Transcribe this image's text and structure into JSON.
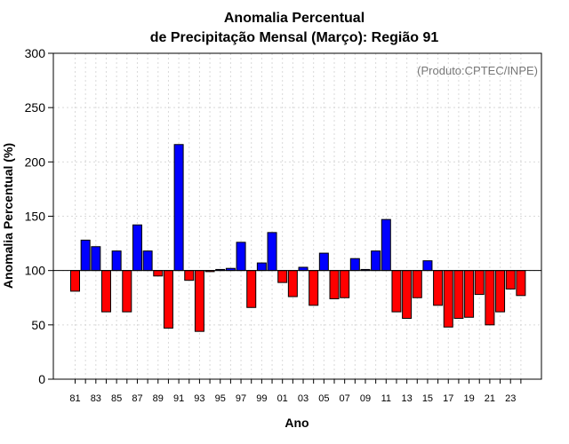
{
  "chart_data": {
    "type": "bar",
    "title_line1": "Anomalia Percentual",
    "title_line2": "de Precipitação Mensal (Março): Região 91",
    "xlabel": "Ano",
    "ylabel": "Anomalia Percentual (%)",
    "annotation": "(Produto:CPTEC/INPE)",
    "baseline": 100,
    "ylim": [
      0,
      300
    ],
    "yticks": [
      0,
      50,
      100,
      150,
      200,
      250,
      300
    ],
    "grid": true,
    "colors": {
      "above": "#0000ff",
      "below": "#ff0000",
      "edge": "#000000"
    },
    "xtick_labels": [
      "81",
      "83",
      "85",
      "87",
      "89",
      "91",
      "93",
      "95",
      "97",
      "99",
      "01",
      "03",
      "05",
      "07",
      "09",
      "11",
      "13",
      "15",
      "17",
      "19",
      "21",
      "23"
    ],
    "categories": [
      "81",
      "82",
      "83",
      "84",
      "85",
      "86",
      "87",
      "88",
      "89",
      "90",
      "91",
      "92",
      "93",
      "94",
      "95",
      "96",
      "97",
      "98",
      "99",
      "00",
      "01",
      "02",
      "03",
      "04",
      "05",
      "06",
      "07",
      "08",
      "09",
      "10",
      "11",
      "12",
      "13",
      "14",
      "15",
      "16",
      "17",
      "18",
      "19",
      "20",
      "21",
      "22",
      "23",
      "24"
    ],
    "values": [
      81,
      128,
      122,
      62,
      118,
      62,
      142,
      118,
      95,
      47,
      216,
      91,
      44,
      99,
      101,
      102,
      126,
      66,
      107,
      135,
      89,
      76,
      103,
      68,
      116,
      74,
      75,
      111,
      101,
      118,
      147,
      62,
      56,
      75,
      109,
      68,
      48,
      56,
      57,
      78,
      50,
      62,
      83,
      77
    ]
  }
}
